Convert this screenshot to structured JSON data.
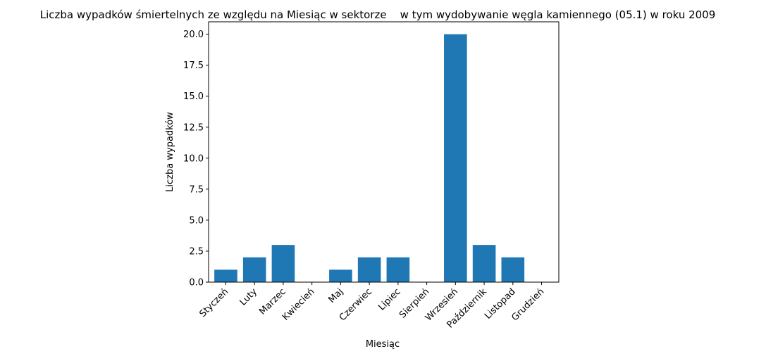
{
  "chart_data": {
    "type": "bar",
    "title": "Liczba wypadków śmiertelnych ze względu na Miesiąc w sektorze    w tym wydobywanie węgla kamiennego (05.1) w roku 2009",
    "xlabel": "Miesiąc",
    "ylabel": "Liczba wypadków",
    "categories": [
      "Styczeń",
      "Luty",
      "Marzec",
      "Kwiecień",
      "Maj",
      "Czerwiec",
      "Lipiec",
      "Sierpień",
      "Wrzesień",
      "Październik",
      "Listopad",
      "Grudzień"
    ],
    "values": [
      1,
      2,
      3,
      0,
      1,
      2,
      2,
      0,
      20,
      3,
      2,
      0
    ],
    "ylim": [
      0,
      21
    ],
    "yticks": [
      "0.0",
      "2.5",
      "5.0",
      "7.5",
      "10.0",
      "12.5",
      "15.0",
      "17.5",
      "20.0"
    ],
    "bar_color": "#1f77b4",
    "grid": false,
    "legend": "none"
  }
}
